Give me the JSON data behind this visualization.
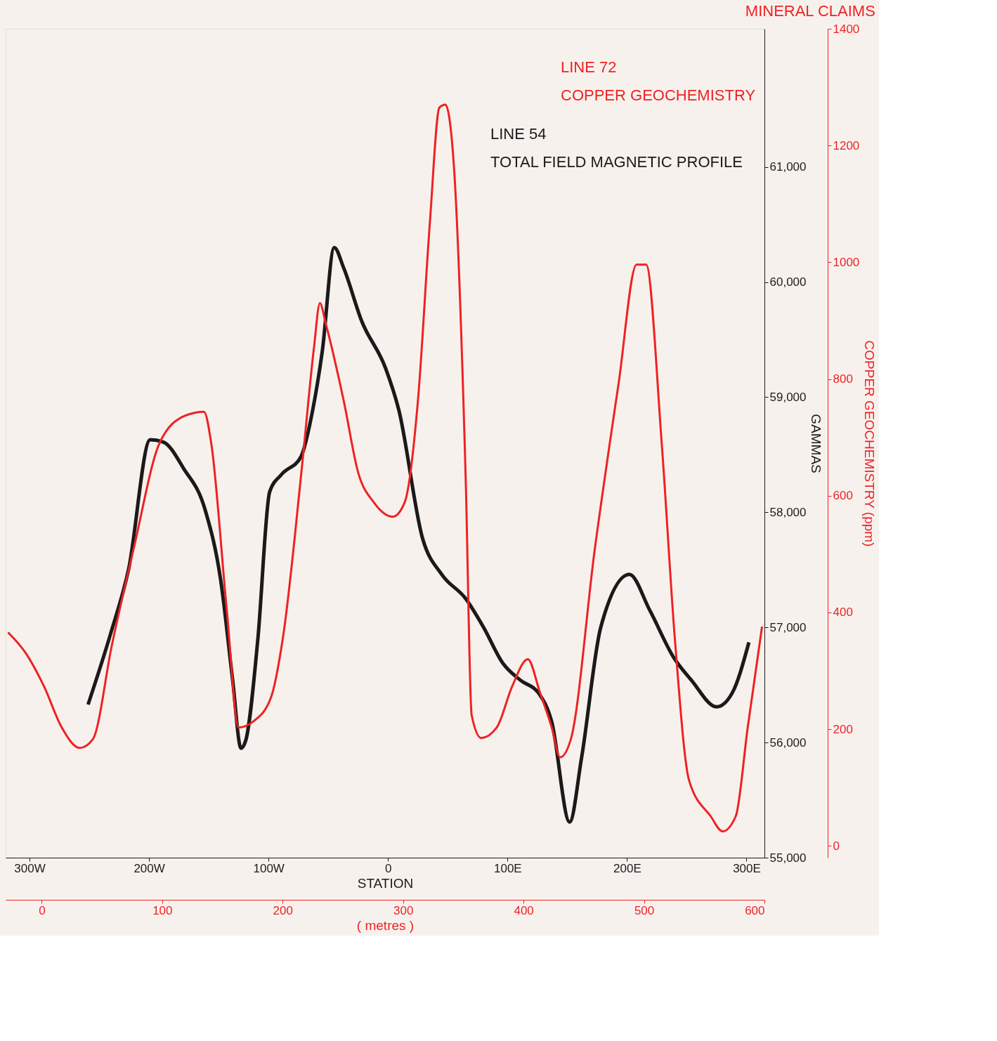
{
  "chart_data": {
    "type": "line",
    "title": "MINERAL CLAIMS",
    "xlabel": "STATION",
    "x2label": "( metres )",
    "ylabel": "GAMMAS",
    "y2label": "COPPER GEOCHEMISTRY (ppm)",
    "xlim": [
      -320,
      315
    ],
    "xticks": [
      {
        "value": -300,
        "label": "300W"
      },
      {
        "value": -200,
        "label": "200W"
      },
      {
        "value": -100,
        "label": "100W"
      },
      0,
      {
        "value": 100,
        "label": "100E"
      },
      {
        "value": 200,
        "label": "200E"
      },
      {
        "value": 300,
        "label": "300E"
      }
    ],
    "x2lim": [
      -30,
      600
    ],
    "x2ticks": [
      0,
      100,
      200,
      300,
      400,
      500,
      600
    ],
    "ylim": [
      55000,
      62200
    ],
    "yticks": [
      {
        "value": 55000,
        "label": "55,000"
      },
      {
        "value": 56000,
        "label": "56,000"
      },
      {
        "value": 57000,
        "label": "57,000"
      },
      {
        "value": 58000,
        "label": "58,000"
      },
      {
        "value": 59000,
        "label": "59,000"
      },
      {
        "value": 60000,
        "label": "60,000"
      },
      {
        "value": 61000,
        "label": "61,000"
      }
    ],
    "y2lim": [
      -20,
      1400
    ],
    "y2ticks": [
      0,
      200,
      400,
      600,
      800,
      1000,
      1200,
      1400
    ],
    "grid": false,
    "legend": false,
    "annotations": [
      "TOTAL FIELD MAGNETIC PROFILE",
      "COPPER GEOCHEMISTRY"
    ],
    "series": [
      {
        "name": "LINE 54",
        "color": "#1a1a1a",
        "x": [
          -251,
          -232,
          -217,
          -199,
          -188,
          -171,
          -153,
          -140,
          -130,
          -123,
          -119,
          -109,
          -99,
          -89,
          -73,
          -63,
          -55,
          -45,
          -37,
          -22,
          -2,
          9,
          29,
          45,
          65,
          80,
          96,
          111,
          126,
          137,
          152,
          162,
          178,
          202,
          219,
          239,
          254,
          275,
          288,
          302
        ],
        "values": [
          56330,
          56950,
          57510,
          58630,
          58610,
          58380,
          58020,
          57410,
          56540,
          55950,
          56020,
          56890,
          58180,
          58330,
          58480,
          58890,
          59400,
          60300,
          60120,
          59660,
          59250,
          58890,
          57770,
          57460,
          57250,
          57000,
          56690,
          56540,
          56430,
          56180,
          55310,
          55870,
          57000,
          57460,
          57150,
          56740,
          56540,
          56310,
          56430,
          56870
        ]
      },
      {
        "name": "LINE 72",
        "color": "#ee2222",
        "axis": "y2",
        "x": [
          -318,
          -303,
          -288,
          -273,
          -258,
          -247,
          -231,
          -213,
          -191,
          -170,
          -154,
          -148,
          -135,
          -125,
          -113,
          -98,
          -88,
          -72,
          -62,
          -57,
          -52,
          -37,
          -25,
          -12,
          4,
          14,
          25,
          35,
          43,
          48,
          55,
          65,
          70,
          78,
          91,
          104,
          117,
          127,
          137,
          144,
          153,
          173,
          193,
          208,
          216,
          229,
          240,
          252,
          270,
          280,
          291,
          301,
          313
        ],
        "values": [
          366,
          330,
          274,
          203,
          168,
          183,
          345,
          508,
          691,
          737,
          744,
          691,
          406,
          203,
          213,
          254,
          356,
          650,
          853,
          930,
          894,
          762,
          640,
          589,
          564,
          589,
          762,
          1067,
          1265,
          1270,
          1169,
          630,
          224,
          185,
          203,
          274,
          320,
          264,
          203,
          152,
          183,
          508,
          793,
          996,
          996,
          691,
          356,
          112,
          51,
          25,
          51,
          203,
          376
        ]
      }
    ]
  }
}
